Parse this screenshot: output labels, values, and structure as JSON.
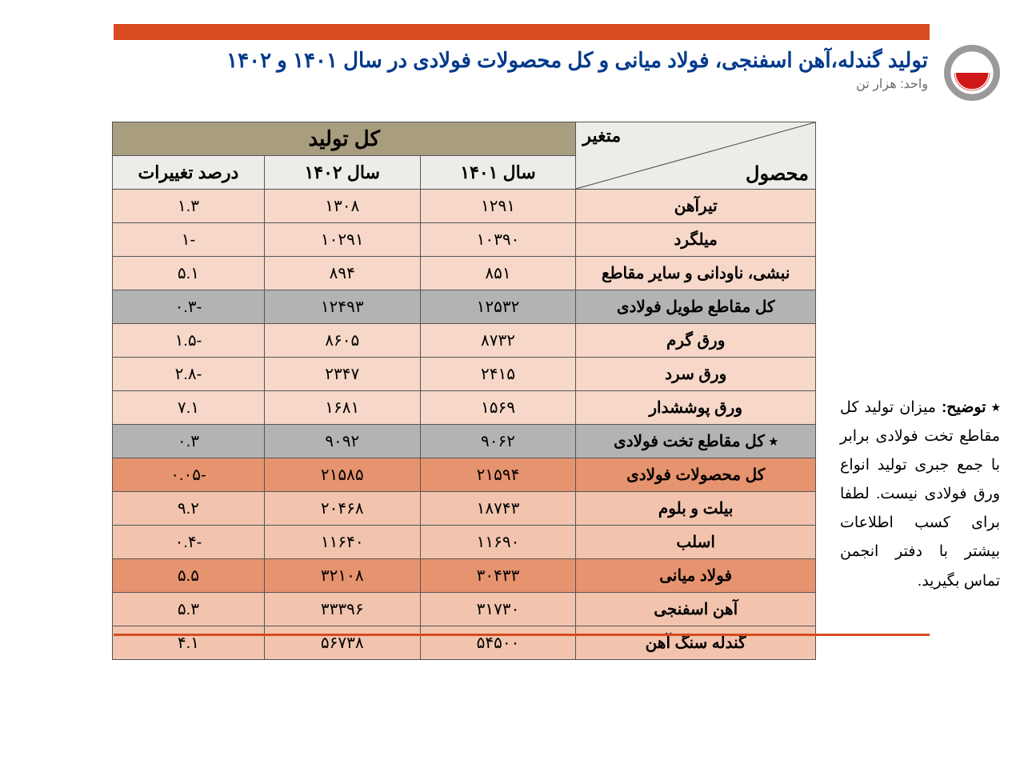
{
  "colors": {
    "accent": "#d84a1f",
    "title": "#003a8c",
    "unit": "#6a6a6a",
    "header_bg": "#a89d7f",
    "header_top_bg": "#edece8",
    "row_light": "#f6d7c8",
    "row_gray": "#b3b3b3",
    "row_orange": "#e6936f",
    "row_peach": "#f2c4ae",
    "border": "#555555"
  },
  "header": {
    "title": "تولید گندله،آهن اسفنجی، فولاد میانی و کل محصولات فولادی در سال ۱۴۰۱ و ۱۴۰۲",
    "unit": "واحد: هزار تن"
  },
  "note": {
    "label": "٭ توضیح:",
    "text": " میزان تولید کل مقاطع تخت فولادی برابر با جمع جبری تولید انواع ورق فولادی نیست. لطفا برای کسب اطلاعات بیشتر با دفتر انجمن تماس بگیرید."
  },
  "table": {
    "diag_top": "متغیر",
    "diag_bottom": "محصول",
    "group_header": "کل تولید",
    "columns": [
      "سال ۱۴۰۱",
      "سال ۱۴۰۲",
      "درصد تغییرات"
    ],
    "col_widths": [
      "300px",
      "195px",
      "195px",
      "190px"
    ],
    "rows": [
      {
        "product": "تیرآهن",
        "y1401": "۱۲۹۱",
        "y1402": "۱۳۰۸",
        "pct": "۱.۳",
        "style": "light"
      },
      {
        "product": "میلگرد",
        "y1401": "۱۰۳۹۰",
        "y1402": "۱۰۲۹۱",
        "pct": "-۱",
        "style": "light"
      },
      {
        "product": "نبشی، ناودانی و سایر مقاطع",
        "y1401": "۸۵۱",
        "y1402": "۸۹۴",
        "pct": "۵.۱",
        "style": "light"
      },
      {
        "product": "کل مقاطع طویل فولادی",
        "y1401": "۱۲۵۳۲",
        "y1402": "۱۲۴۹۳",
        "pct": "-۰.۳",
        "style": "gray"
      },
      {
        "product": "ورق گرم",
        "y1401": "۸۷۳۲",
        "y1402": "۸۶۰۵",
        "pct": "-۱.۵",
        "style": "light"
      },
      {
        "product": "ورق سرد",
        "y1401": "۲۴۱۵",
        "y1402": "۲۳۴۷",
        "pct": "-۲.۸",
        "style": "light"
      },
      {
        "product": "ورق پوششدار",
        "y1401": "۱۵۶۹",
        "y1402": "۱۶۸۱",
        "pct": "۷.۱",
        "style": "light"
      },
      {
        "product": "٭ کل مقاطع تخت فولادی",
        "y1401": "۹۰۶۲",
        "y1402": "۹۰۹۲",
        "pct": "۰.۳",
        "style": "gray"
      },
      {
        "product": "کل محصولات فولادی",
        "y1401": "۲۱۵۹۴",
        "y1402": "۲۱۵۸۵",
        "pct": "-۰.۰۵",
        "style": "orange"
      },
      {
        "product": "بیلت و بلوم",
        "y1401": "۱۸۷۴۳",
        "y1402": "۲۰۴۶۸",
        "pct": "۹.۲",
        "style": "peach"
      },
      {
        "product": "اسلب",
        "y1401": "۱۱۶۹۰",
        "y1402": "۱۱۶۴۰",
        "pct": "-۰.۴",
        "style": "peach"
      },
      {
        "product": "فولاد میانی",
        "y1401": "۳۰۴۳۳",
        "y1402": "۳۲۱۰۸",
        "pct": "۵.۵",
        "style": "orange"
      },
      {
        "product": "آهن اسفنجی",
        "y1401": "۳۱۷۳۰",
        "y1402": "۳۳۳۹۶",
        "pct": "۵.۳",
        "style": "peach"
      },
      {
        "product": "گندله سنگ آهن",
        "y1401": "۵۴۵۰۰",
        "y1402": "۵۶۷۳۸",
        "pct": "۴.۱",
        "style": "peach"
      }
    ]
  }
}
